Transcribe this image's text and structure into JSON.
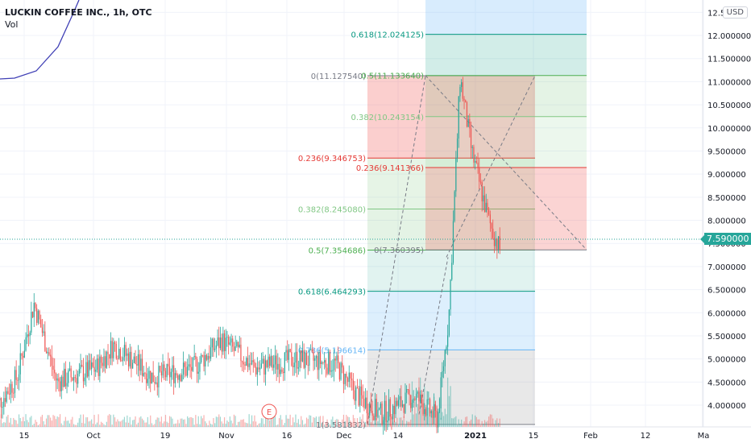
{
  "header": {
    "title": "LUCKIN COFFEE INC., 1h, OTC",
    "indicator": "Vol",
    "currency": "USD",
    "last_price": "7.590000",
    "earnings_marker": "E"
  },
  "chart_data": {
    "type": "candlestick",
    "symbol": "LUCKIN COFFEE INC.",
    "interval": "1h",
    "exchange": "OTC",
    "x_tick_labels": [
      "15",
      "Oct",
      "19",
      "Nov",
      "16",
      "Dec",
      "14",
      "2021",
      "15",
      "Feb",
      "12",
      "Ma"
    ],
    "y_tick_labels": [
      "4.000000",
      "4.500000",
      "5.000000",
      "5.500000",
      "6.000000",
      "6.500000",
      "7.000000",
      "7.500000",
      "8.000000",
      "8.500000",
      "9.000000",
      "9.500000",
      "10.000000",
      "10.500000",
      "11.000000",
      "11.500000",
      "12.000000",
      "12.5"
    ],
    "ylim": [
      3.6,
      12.65
    ],
    "last_price": 7.59,
    "price_path": [
      {
        "date": "2020-10-01",
        "price": 3.9
      },
      {
        "date": "2020-10-05",
        "price": 4.6
      },
      {
        "date": "2020-10-08",
        "price": 6.2
      },
      {
        "date": "2020-10-12",
        "price": 4.5
      },
      {
        "date": "2020-10-19",
        "price": 4.8
      },
      {
        "date": "2020-10-22",
        "price": 5.3
      },
      {
        "date": "2020-10-29",
        "price": 4.6
      },
      {
        "date": "2020-11-05",
        "price": 4.8
      },
      {
        "date": "2020-11-10",
        "price": 5.4
      },
      {
        "date": "2020-11-16",
        "price": 4.8
      },
      {
        "date": "2020-11-23",
        "price": 5.0
      },
      {
        "date": "2020-11-30",
        "price": 4.9
      },
      {
        "date": "2020-12-04",
        "price": 4.2
      },
      {
        "date": "2020-12-08",
        "price": 3.8
      },
      {
        "date": "2020-12-14",
        "price": 4.2
      },
      {
        "date": "2020-12-18",
        "price": 3.7
      },
      {
        "date": "2020-12-20",
        "price": 5.9
      },
      {
        "date": "2020-12-22",
        "price": 11.1
      },
      {
        "date": "2020-12-24",
        "price": 9.5
      },
      {
        "date": "2020-12-27",
        "price": 8.0
      },
      {
        "date": "2020-12-29",
        "price": 7.36
      }
    ],
    "fib_retracement_1": {
      "label_color": "#43a047",
      "levels": [
        {
          "label": "0(11.127540)",
          "value": 11.12754,
          "color": "#787b86"
        },
        {
          "label": "0.236(9.346753)",
          "value": 9.346753,
          "color": "#e53935"
        },
        {
          "label": "0.382(8.245080)",
          "value": 8.24508,
          "color": "#81c784"
        },
        {
          "label": "0.5(7.354686)",
          "value": 7.354686,
          "color": "#4caf50"
        },
        {
          "label": "0.618(6.464293)",
          "value": 6.464293,
          "color": "#089981"
        },
        {
          "label": "0.786(5.196614)",
          "value": 5.196614,
          "color": "#64b5f6"
        },
        {
          "label": "1(3.581832)",
          "value": 3.581832,
          "color": "#787b86"
        }
      ]
    },
    "fib_retracement_2": {
      "levels": [
        {
          "label": "0.618(12.024125)",
          "value": 12.024125,
          "color": "#089981"
        },
        {
          "label": "0.5(11.133640)",
          "value": 11.13364,
          "color": "#4caf50"
        },
        {
          "label": "0.382(10.243154)",
          "value": 10.243154,
          "color": "#81c784"
        },
        {
          "label": "0.236(9.141366)",
          "value": 9.141366,
          "color": "#e53935"
        },
        {
          "label": "0(7.360395)",
          "value": 7.360395,
          "color": "#787b86"
        }
      ]
    },
    "colors": {
      "up": "#26a69a",
      "down": "#ef5350",
      "indicator_line": "#3f3fb5",
      "last_price_line": "#26a69a"
    }
  }
}
